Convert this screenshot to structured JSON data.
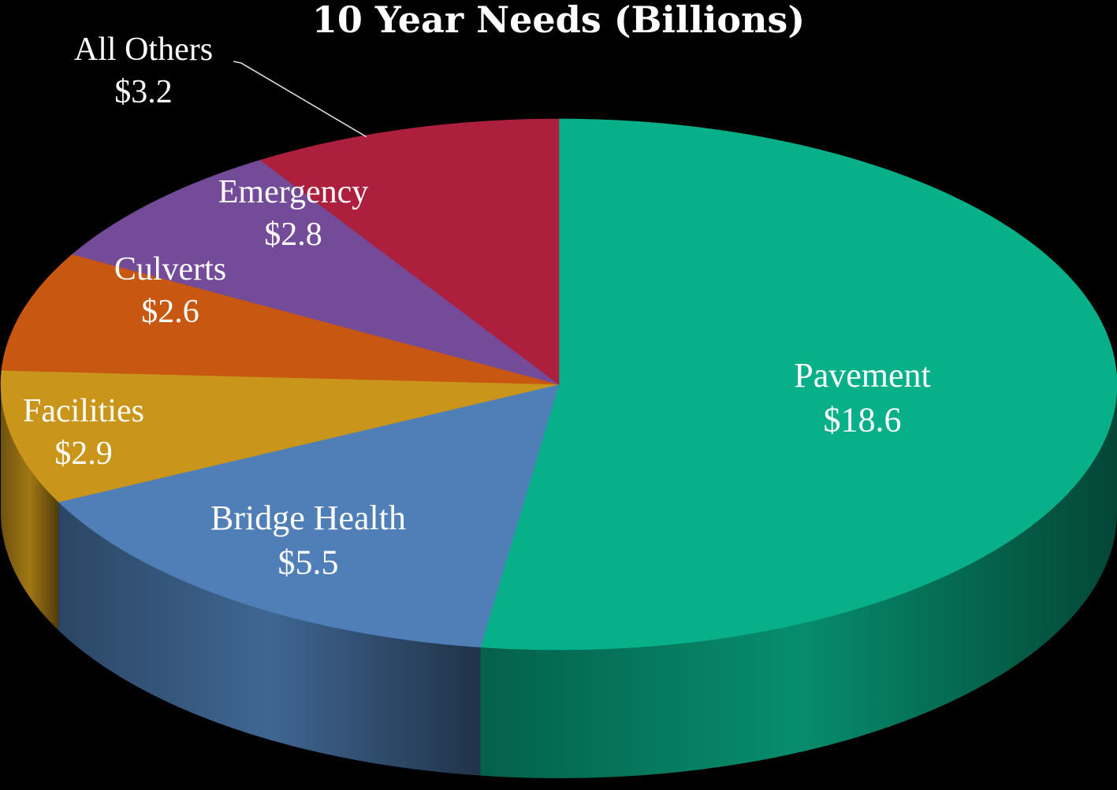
{
  "chart_data": {
    "type": "pie",
    "title": "10 Year Needs (Billions)",
    "three_d": true,
    "slices": [
      {
        "label": "Pavement",
        "value": 18.6,
        "display": "$18.6",
        "color": "#07b088"
      },
      {
        "label": "Bridge Health",
        "value": 5.5,
        "display": "$5.5",
        "color": "#4f7fb6"
      },
      {
        "label": "Facilities",
        "value": 2.9,
        "display": "$2.9",
        "color": "#c9951a"
      },
      {
        "label": "Culverts",
        "value": 2.6,
        "display": "$2.6",
        "color": "#c85811"
      },
      {
        "label": "Emergency",
        "value": 2.8,
        "display": "$2.8",
        "color": "#744b98"
      },
      {
        "label": "All Others",
        "value": 3.2,
        "display": "$3.2",
        "color": "#ad203d"
      }
    ]
  }
}
